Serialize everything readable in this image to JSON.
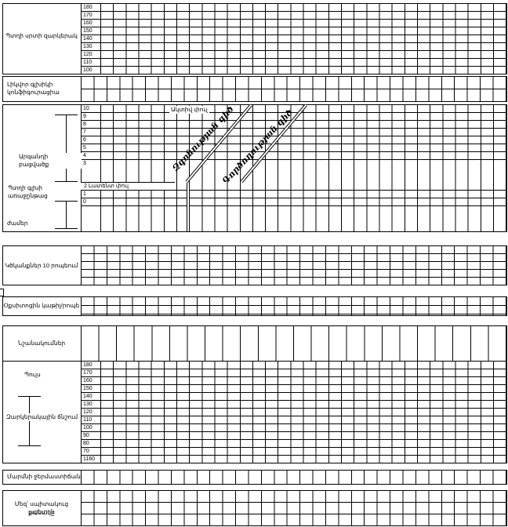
{
  "form": {
    "sections": {
      "fetal_heart": {
        "label": "Պտղի սրտի զարկերակ",
        "scale": [
          "180",
          "170",
          "160",
          "150",
          "140",
          "130",
          "120",
          "110",
          "100"
        ]
      },
      "liquor": {
        "label_line1": "Լիկվոր գլխիկի",
        "label_line2": "կոնֆիգուրացիա"
      },
      "partograph": {
        "dilation_label_line1": "Արգանդի պարանոցի",
        "dilation_label_line2": "բացվածք",
        "descent_label": "Պտղի գլխի առաջընթաց",
        "hours_label": "ժամեր",
        "scale_upper": [
          "10",
          "9",
          "8",
          "7",
          "6",
          "5",
          "4"
        ],
        "scale_three": "3",
        "latent_phase": "2 Լատենտ փուլ",
        "scale_lower": [
          "1",
          "0"
        ],
        "active_phase": "Ակտիվ փուլ",
        "alert_line": "Զգոնության գիծ",
        "action_line": "Գործողության գիծ"
      },
      "contractions": {
        "label": "Կծկանքներ 10 րոպեում"
      },
      "oxytocin": {
        "label": "Օքսիտոցին կաթիլ/րոպե"
      },
      "prescriptions": {
        "label": "Նշանակումներ"
      },
      "vitals": {
        "pulse_label": "Պուլս",
        "bp_label": "Զարկերակային ճնշում",
        "scale": [
          "180",
          "170",
          "160",
          "150",
          "140",
          "130",
          "120",
          "110",
          "100",
          "90",
          "80",
          "70",
          "1160"
        ]
      },
      "temperature": {
        "label": "Մարմնի ջերմաստիճան"
      },
      "urine": {
        "label_line1": "Մեզ՝ սպիտակուց ացետոն",
        "label_line2": "քանակը"
      }
    }
  }
}
